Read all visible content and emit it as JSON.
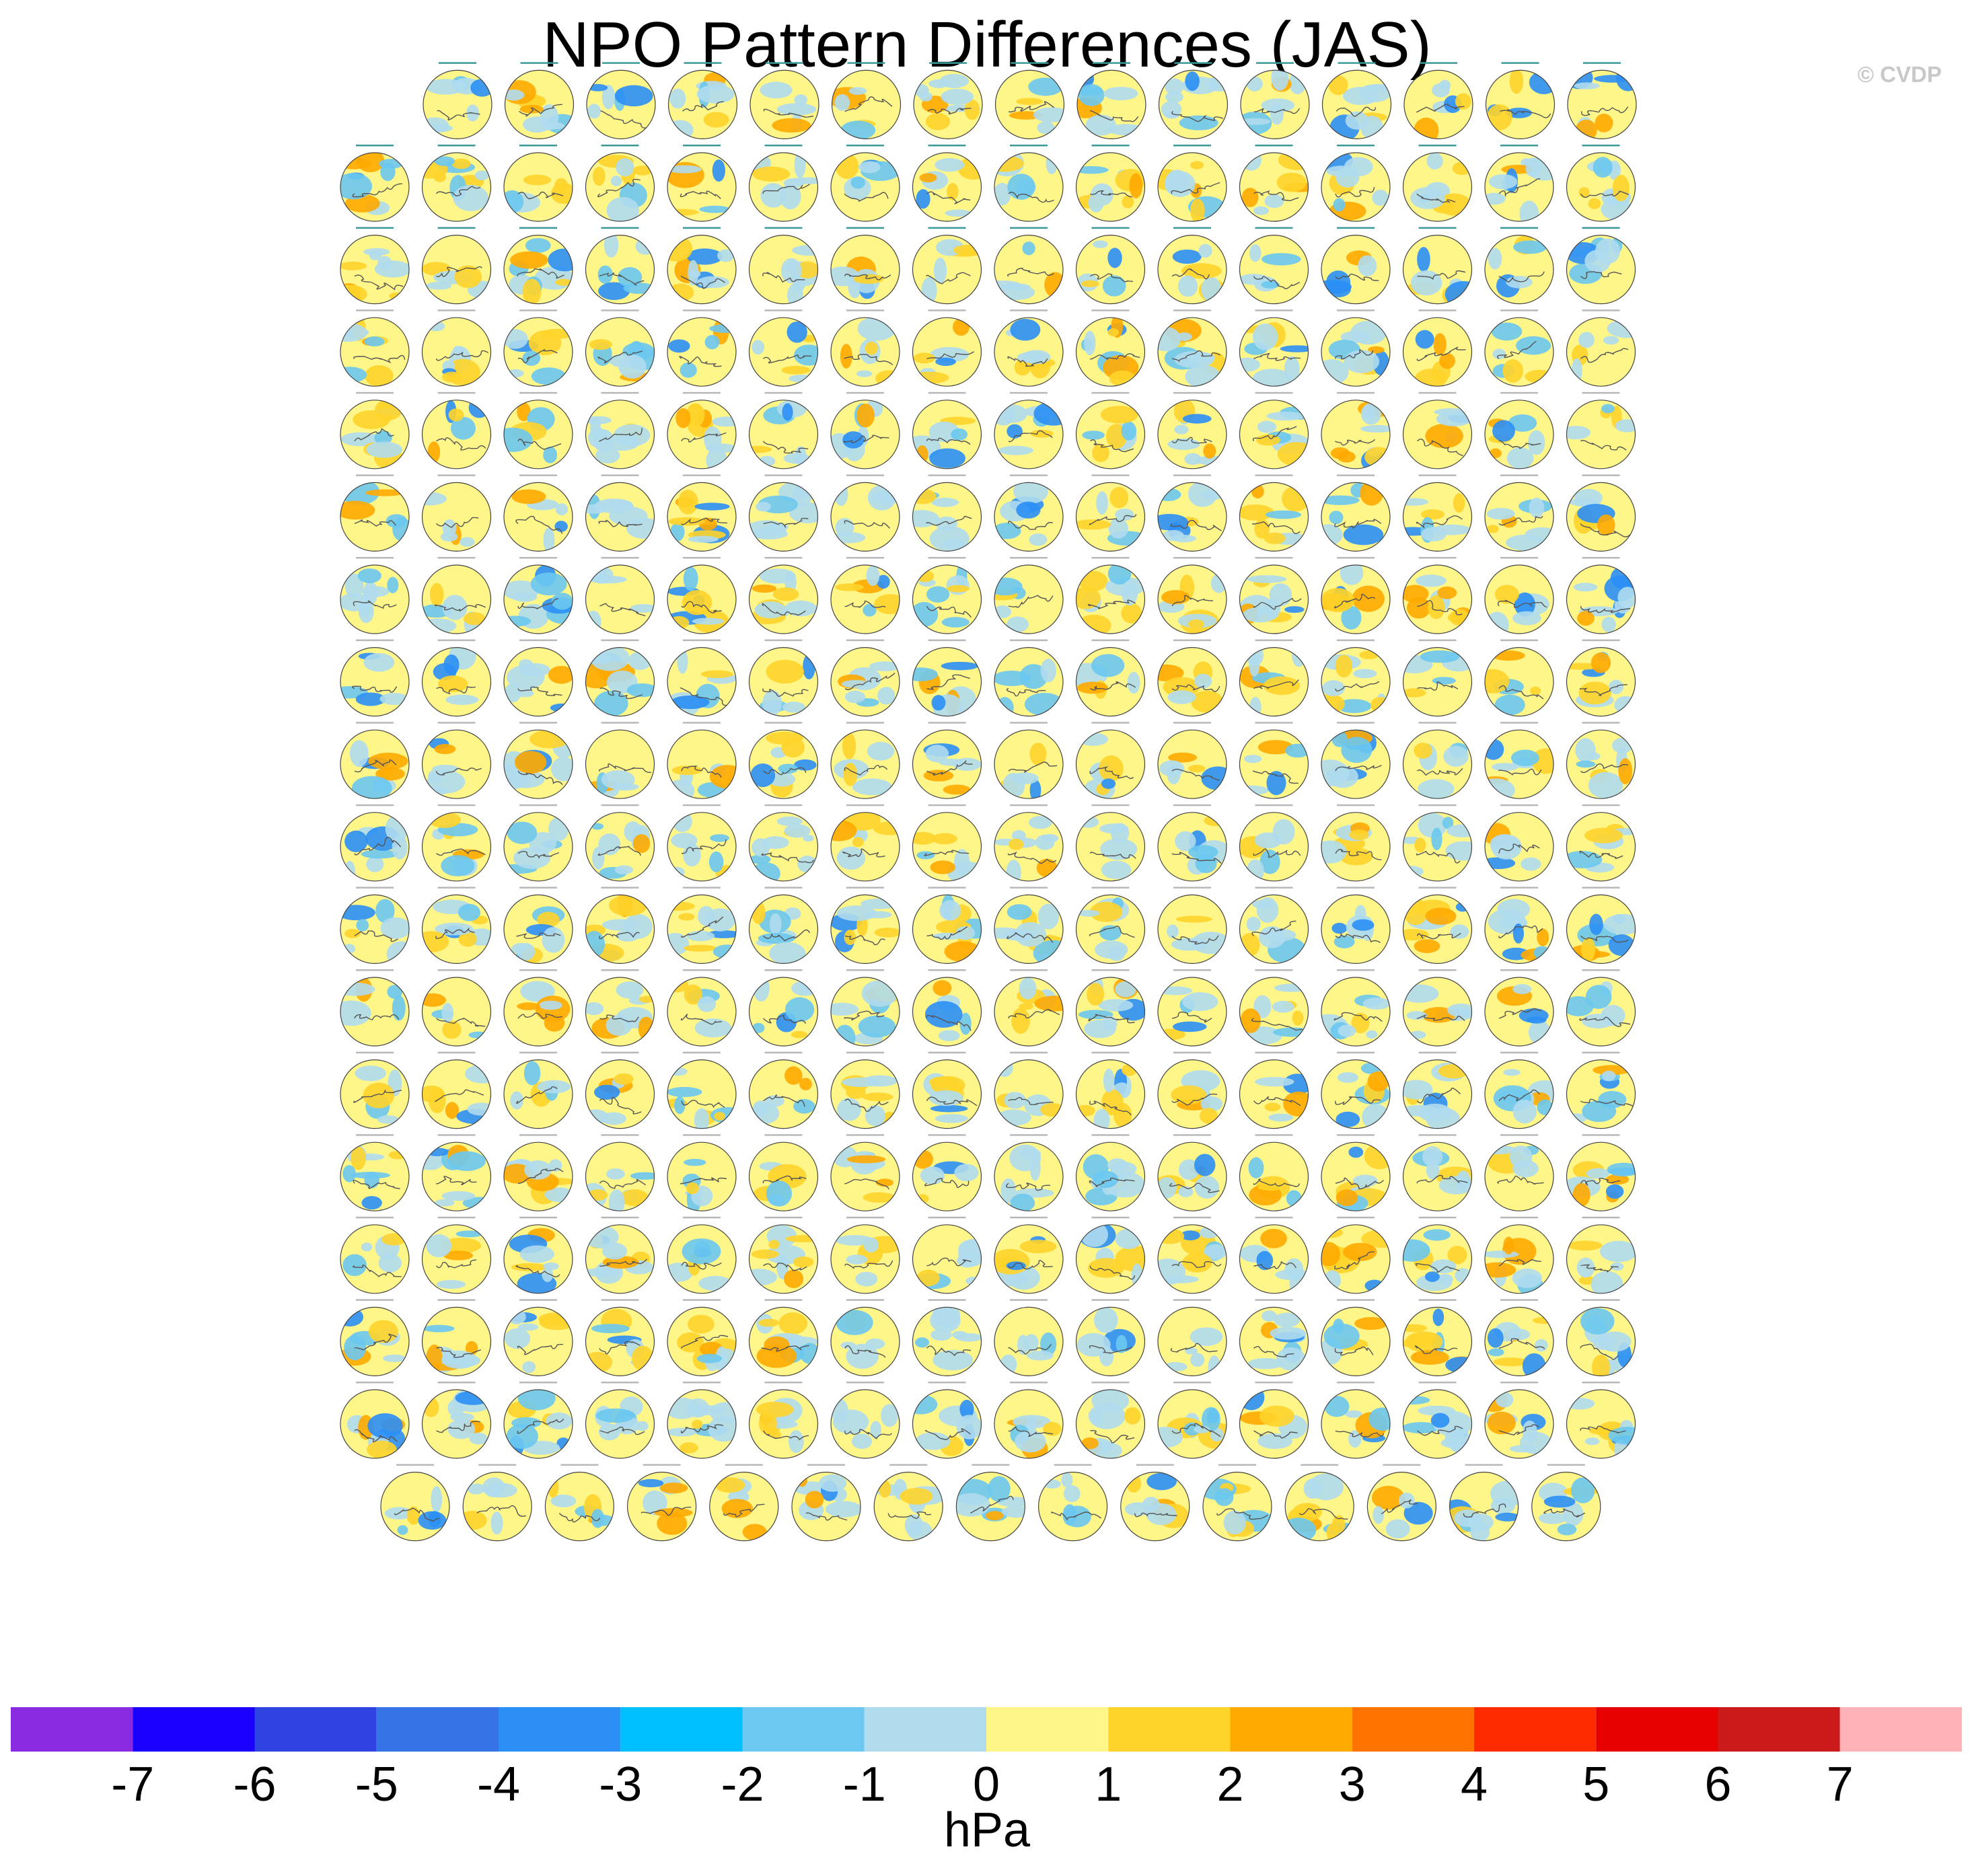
{
  "page": {
    "title": "NPO Pattern Differences (JAS)",
    "watermark": "© CVDP"
  },
  "chart_data": {
    "type": "heatmap",
    "title": "NPO Pattern Differences (JAS)",
    "description_of_grid": "Small-multiple polar stereographic maps of the North Pacific Oscillation pattern difference, one per model member",
    "panel_rows": [
      15,
      16,
      16,
      16,
      16,
      16,
      16,
      16,
      16,
      16,
      16,
      16,
      16,
      16,
      16,
      16,
      16,
      15
    ],
    "panel_count": 286,
    "colorbar": {
      "units": "hPa",
      "ticks": [
        "-7",
        "-6",
        "-5",
        "-4",
        "-3",
        "-2",
        "-1",
        "0",
        "1",
        "2",
        "3",
        "4",
        "5",
        "6",
        "7"
      ],
      "levels": [
        -7,
        -6,
        -5,
        -4,
        -3,
        -2,
        -1,
        0,
        1,
        2,
        3,
        4,
        5,
        6,
        7
      ],
      "colors": [
        "#8a2be2",
        "#1b00ff",
        "#2f43e0",
        "#3573e6",
        "#2b8ff5",
        "#00bfff",
        "#6cc8f0",
        "#b0dcee",
        "#fff68a",
        "#ffd42a",
        "#ffaa00",
        "#ff7300",
        "#ff2b00",
        "#e60000",
        "#cc1a1a",
        "#ffb3b8"
      ]
    }
  }
}
